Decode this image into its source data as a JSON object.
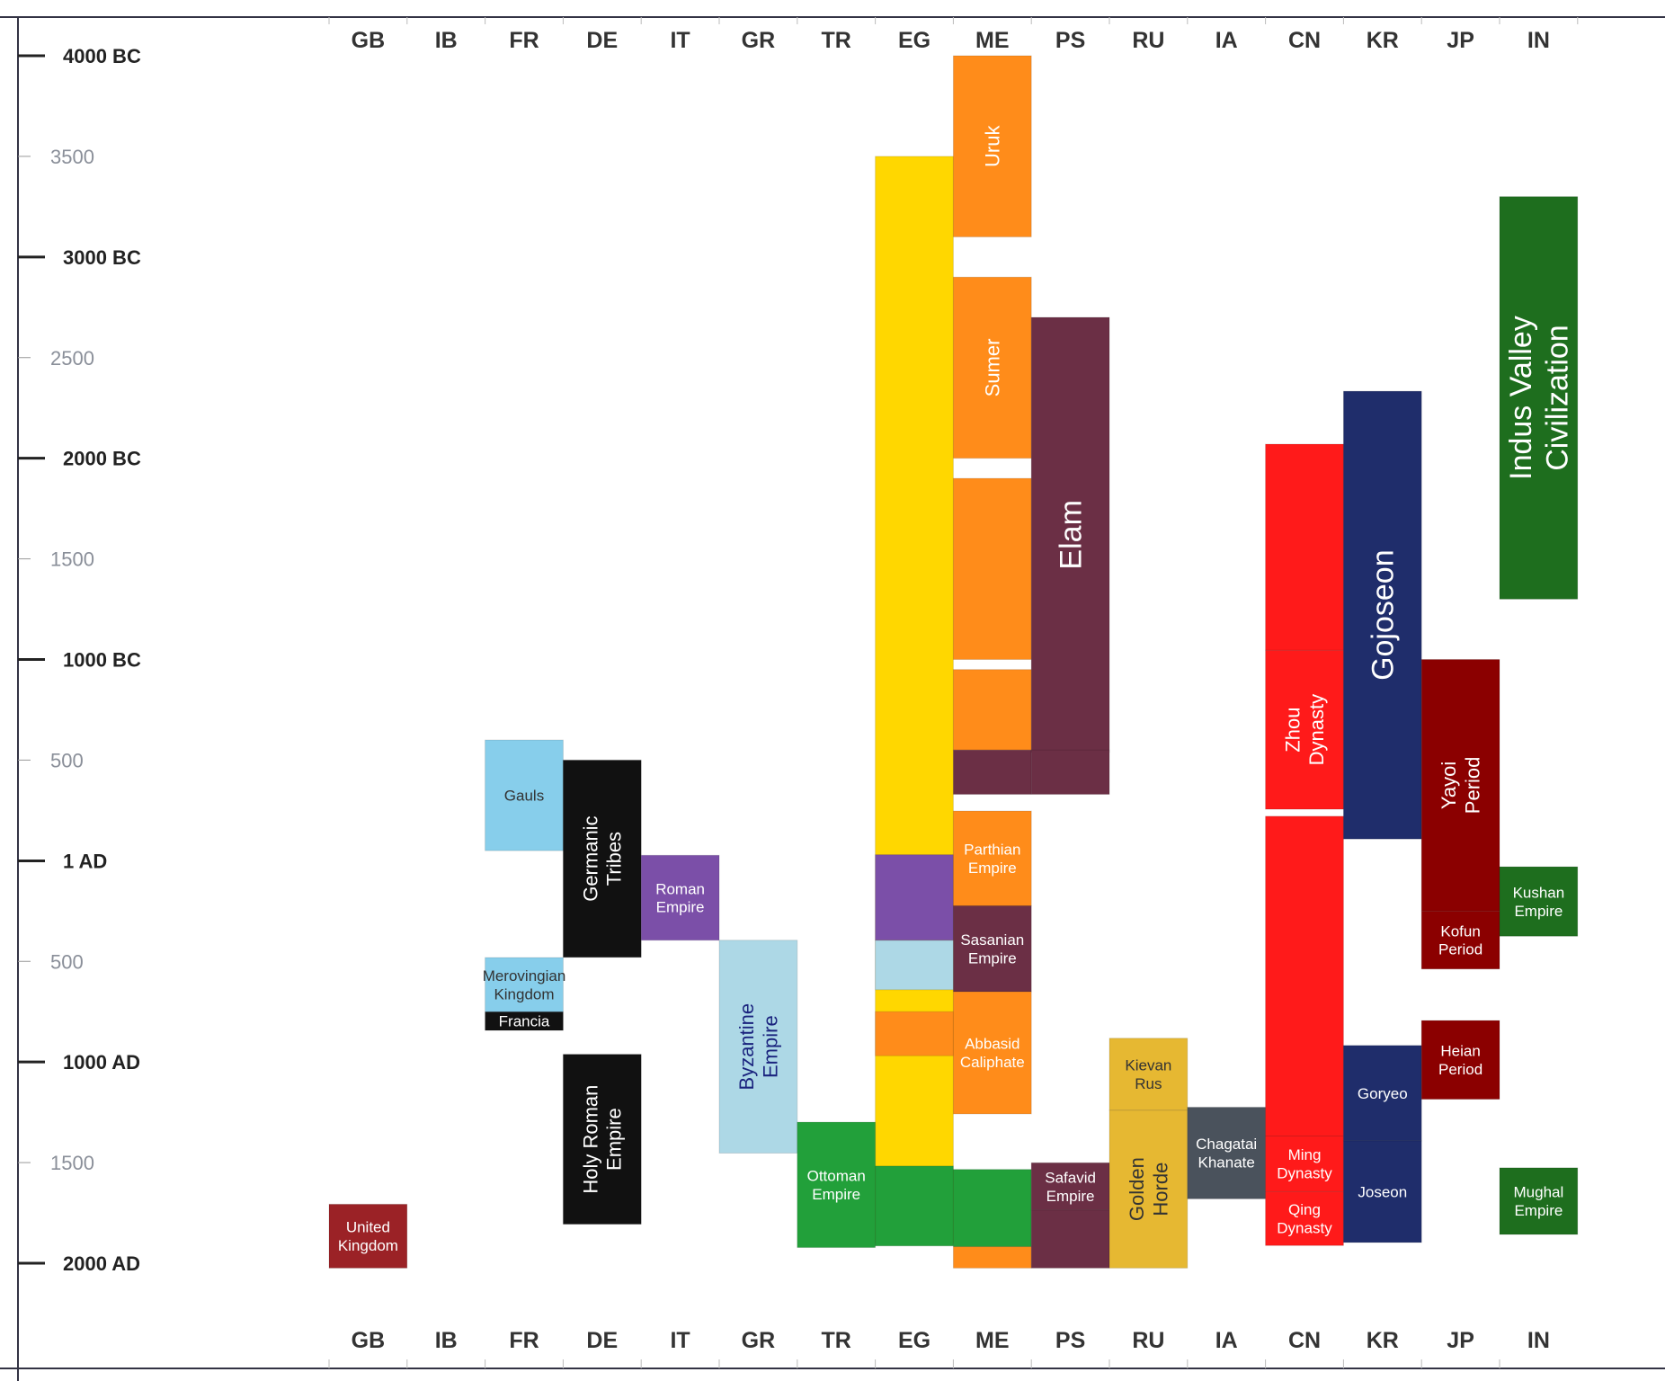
{
  "chart_data": {
    "type": "timeline",
    "x_unit": "region",
    "y_unit": "year (negative = BC)",
    "y_range": [
      -4000,
      2000
    ],
    "regions": [
      "GB",
      "IB",
      "FR",
      "DE",
      "IT",
      "GR",
      "TR",
      "EG",
      "ME",
      "PS",
      "RU",
      "IA",
      "CN",
      "KR",
      "JP",
      "IN"
    ],
    "y_ticks": [
      {
        "value": -4000,
        "label": "4000 BC",
        "major": true
      },
      {
        "value": -3500,
        "label": "3500",
        "major": false
      },
      {
        "value": -3000,
        "label": "3000 BC",
        "major": true
      },
      {
        "value": -2500,
        "label": "2500",
        "major": false
      },
      {
        "value": -2000,
        "label": "2000 BC",
        "major": true
      },
      {
        "value": -1500,
        "label": "1500",
        "major": false
      },
      {
        "value": -1000,
        "label": "1000 BC",
        "major": true
      },
      {
        "value": -500,
        "label": "500",
        "major": false
      },
      {
        "value": 1,
        "label": "1 AD",
        "major": true
      },
      {
        "value": 500,
        "label": "500",
        "major": false
      },
      {
        "value": 1000,
        "label": "1000 AD",
        "major": true
      },
      {
        "value": 1500,
        "label": "1500",
        "major": false
      },
      {
        "value": 2000,
        "label": "2000 AD",
        "major": true
      }
    ],
    "polities": [
      {
        "name": "EG fill",
        "region": "EG",
        "start": -3500,
        "end": 1900,
        "color": "#ffd700"
      },
      {
        "name": "Ottoman Empire EG",
        "region": "EG",
        "start": 1517,
        "end": 1914,
        "color": "#22a03a"
      },
      {
        "name": "Abbasid Caliphate EG",
        "region": "EG",
        "start": 750,
        "end": 969,
        "color": "#ff8c1a"
      },
      {
        "name": "Byzantine EG",
        "region": "EG",
        "start": 395,
        "end": 641,
        "color": "#add8e6"
      },
      {
        "name": "Roman Empire EG",
        "region": "EG",
        "start": -30,
        "end": 395,
        "color": "#7b4fa8"
      },
      {
        "name": "Uruk",
        "label": "Uruk",
        "region": "ME",
        "start": -4000,
        "end": -3100,
        "color": "#ff8c1a"
      },
      {
        "name": "Sumer",
        "label": "Sumer",
        "region": "ME",
        "start": -2900,
        "end": -2000,
        "color": "#ff8c1a"
      },
      {
        "name": "ME Babylon",
        "region": "ME",
        "start": -1900,
        "end": -1000,
        "color": "#ff8c1a"
      },
      {
        "name": "ME Assyria",
        "region": "ME",
        "start": -950,
        "end": -550,
        "color": "#ff8c1a"
      },
      {
        "name": "ME Achaemenid",
        "region": "ME",
        "start": -550,
        "end": -330,
        "color": "#6b2f45"
      },
      {
        "name": "Parthian Empire",
        "label": "Parthian Empire",
        "region": "ME",
        "start": -247,
        "end": 224,
        "color": "#ff8c1a"
      },
      {
        "name": "Sasanian Empire",
        "label": "Sasanian Empire",
        "region": "ME",
        "start": 224,
        "end": 651,
        "color": "#6b2f45"
      },
      {
        "name": "Abbasid Caliphate",
        "label": "Abbasid Caliphate",
        "region": "ME",
        "start": 651,
        "end": 1258,
        "color": "#ff8c1a"
      },
      {
        "name": "Ottoman Empire ME",
        "region": "ME",
        "start": 1534,
        "end": 1918,
        "color": "#22a03a"
      },
      {
        "name": "ME Modern",
        "region": "ME",
        "start": 1918,
        "end": 2024,
        "color": "#ff8c1a"
      },
      {
        "name": "Elam",
        "label": "Elam",
        "region": "PS",
        "start": -2700,
        "end": -539,
        "color": "#6b2f45"
      },
      {
        "name": "PS Achaemenid",
        "region": "PS",
        "start": -550,
        "end": -330,
        "color": "#6b2f45"
      },
      {
        "name": "Safavid Empire",
        "label": "Safavid Empire",
        "region": "PS",
        "start": 1501,
        "end": 1736,
        "color": "#6b2f45"
      },
      {
        "name": "PS Modern",
        "region": "PS",
        "start": 1736,
        "end": 2024,
        "color": "#6b2f45"
      },
      {
        "name": "Kievan Rus",
        "label": "Kievan Rus",
        "region": "RU",
        "start": 882,
        "end": 1240,
        "color": "#e6b832"
      },
      {
        "name": "Golden Horde",
        "label": "Golden Horde",
        "region": "RU",
        "start": 1240,
        "end": 2024,
        "color": "#e6b832"
      },
      {
        "name": "Chagatai Khanate",
        "label": "Chagatai Khanate",
        "region": "IA",
        "start": 1225,
        "end": 1680,
        "color": "#4a525c"
      },
      {
        "name": "Qing Dynasty",
        "label": "Qing Dynasty",
        "region": "CN",
        "start": 1644,
        "end": 1912,
        "color": "#ff1a1a"
      },
      {
        "name": "Zhou Dynasty",
        "label": "Zhou Dynasty",
        "region": "CN",
        "start": -1046,
        "end": -256,
        "color": "#ff1a1a"
      },
      {
        "name": "CN early",
        "region": "CN",
        "start": -2070,
        "end": -1046,
        "color": "#ff1a1a"
      },
      {
        "name": "CN imperial",
        "region": "CN",
        "start": -221,
        "end": 1368,
        "color": "#ff1a1a"
      },
      {
        "name": "Ming Dynasty",
        "label": "Ming Dynasty",
        "region": "CN",
        "start": 1368,
        "end": 1644,
        "color": "#ff1a1a"
      },
      {
        "name": "Gojoseon",
        "label": "Gojoseon",
        "region": "KR",
        "start": -2333,
        "end": -108,
        "color": "#1f2d6b"
      },
      {
        "name": "Goryeo",
        "label": "Goryeo",
        "region": "KR",
        "start": 918,
        "end": 1392,
        "color": "#1f2d6b"
      },
      {
        "name": "Joseon",
        "label": "Joseon",
        "region": "KR",
        "start": 1392,
        "end": 1897,
        "color": "#1f2d6b"
      },
      {
        "name": "Yayoi Period",
        "label": "Yayoi Period",
        "region": "JP",
        "start": -1000,
        "end": 250,
        "color": "#8b0000"
      },
      {
        "name": "Kofun Period",
        "label": "Kofun Period",
        "region": "JP",
        "start": 250,
        "end": 538,
        "color": "#8b0000"
      },
      {
        "name": "Heian Period",
        "label": "Heian Period",
        "region": "JP",
        "start": 794,
        "end": 1185,
        "color": "#8b0000"
      },
      {
        "name": "Indus Valley Civilization",
        "label": "Indus Valley Civilization",
        "region": "IN",
        "start": -3300,
        "end": -1300,
        "color": "#1e6e1e"
      },
      {
        "name": "Kushan Empire",
        "label": "Kushan Empire",
        "region": "IN",
        "start": 30,
        "end": 375,
        "color": "#1e6e1e"
      },
      {
        "name": "Mughal Empire",
        "label": "Mughal Empire",
        "region": "IN",
        "start": 1526,
        "end": 1857,
        "color": "#1e6e1e"
      },
      {
        "name": "United Kingdom",
        "label": "United Kingdom",
        "region": "GB",
        "start": 1707,
        "end": 2024,
        "color": "#9b2226"
      },
      {
        "name": "Gauls",
        "label": "Gauls",
        "region": "FR",
        "start": -600,
        "end": -50,
        "color": "#87ceeb"
      },
      {
        "name": "Merovingian Kingdom",
        "label": "Merovingian Kingdom",
        "region": "FR",
        "start": 481,
        "end": 751,
        "color": "#87ceeb"
      },
      {
        "name": "Francia",
        "label": "Francia",
        "region": "FR",
        "start": 751,
        "end": 843,
        "color": "#111111"
      },
      {
        "name": "Germanic Tribes",
        "label": "Germanic Tribes",
        "region": "DE",
        "start": -500,
        "end": 480,
        "color": "#111111"
      },
      {
        "name": "Holy Roman Empire",
        "label": "Holy Roman Empire",
        "region": "DE",
        "start": 962,
        "end": 1806,
        "color": "#111111"
      },
      {
        "name": "Roman Empire",
        "label": "Roman Empire",
        "region": "IT",
        "start": -27,
        "end": 395,
        "color": "#7b4fa8"
      },
      {
        "name": "Byzantine Empire",
        "label": "Byzantine Empire",
        "region": "GR",
        "start": 395,
        "end": 1453,
        "color": "#add8e6"
      },
      {
        "name": "Ottoman Empire",
        "label": "Ottoman Empire",
        "region": "TR",
        "start": 1299,
        "end": 1922,
        "color": "#22a03a"
      }
    ]
  }
}
